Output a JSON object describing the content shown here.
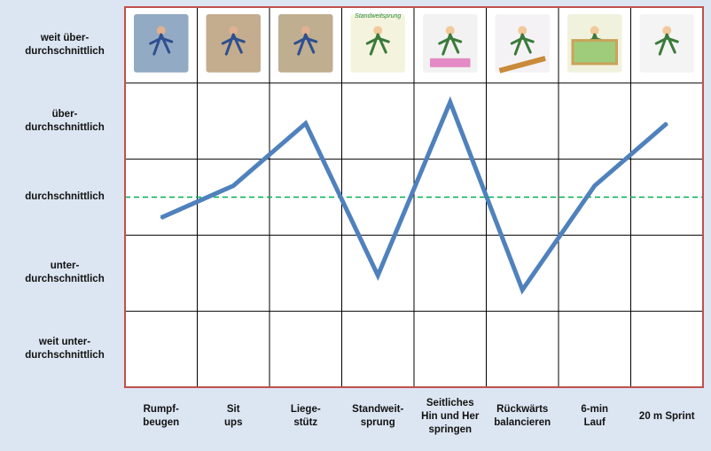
{
  "chart_data": {
    "type": "line",
    "title": "",
    "xlabel": "",
    "ylabel": "",
    "categories": [
      "Rumpf-\nbeugen",
      "Sit\nups",
      "Liege-\nstütz",
      "Standweit-\nsprung",
      "Seitliches\nHin und Her\nspringen",
      "Rückwärts\nbalancieren",
      "6-min\nLauf",
      "20 m Sprint"
    ],
    "levels": [
      "weit über-\ndurchschnittlich",
      "über-\ndurchschnittlich",
      "durchschnittlich",
      "unter-\ndurchschnittlich",
      "weit unter-\ndurchschnittlich"
    ],
    "ylim": [
      -2.5,
      2.5
    ],
    "series": [
      {
        "values": [
          -0.27,
          0.15,
          0.97,
          -1.03,
          1.25,
          -1.22,
          0.15,
          0.97
        ]
      }
    ],
    "reference_line": {
      "value": 0,
      "style": "dashed"
    },
    "colors": {
      "line": "#4f81bd",
      "reference": "#00b050",
      "border": "#c0504d",
      "grid": "#000000",
      "background": "#dce6f2"
    },
    "images": [
      "stretch-photo",
      "situp-photo",
      "pushup-photo",
      "standing-jump-drawing",
      "side-jump-drawing",
      "balance-drawing",
      "run-drawing",
      "sprint-drawing"
    ],
    "header_text": "Standweitsprung"
  }
}
